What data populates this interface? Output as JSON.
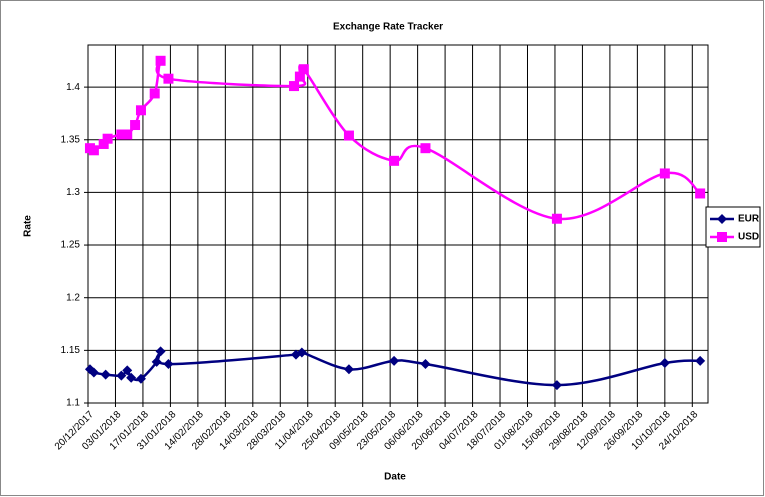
{
  "chart_data": {
    "type": "line",
    "title": "Exchange Rate Tracker",
    "x_label": "Date",
    "y_label": "Rate",
    "xlim": [
      "2017-12-20",
      "2018-11-01"
    ],
    "xticks": [
      {
        "value": "2017-12-20",
        "label": "20/12/2017"
      },
      {
        "value": "2018-01-03",
        "label": "03/01/2018"
      },
      {
        "value": "2018-01-17",
        "label": "17/01/2018"
      },
      {
        "value": "2018-01-31",
        "label": "31/01/2018"
      },
      {
        "value": "2018-02-14",
        "label": "14/02/2018"
      },
      {
        "value": "2018-02-28",
        "label": "28/02/2018"
      },
      {
        "value": "2018-03-14",
        "label": "14/03/2018"
      },
      {
        "value": "2018-03-28",
        "label": "28/03/2018"
      },
      {
        "value": "2018-04-11",
        "label": "11/04/2018"
      },
      {
        "value": "2018-04-25",
        "label": "25/04/2018"
      },
      {
        "value": "2018-05-09",
        "label": "09/05/2018"
      },
      {
        "value": "2018-05-23",
        "label": "23/05/2018"
      },
      {
        "value": "2018-06-06",
        "label": "06/06/2018"
      },
      {
        "value": "2018-06-20",
        "label": "20/06/2018"
      },
      {
        "value": "2018-07-04",
        "label": "04/07/2018"
      },
      {
        "value": "2018-07-18",
        "label": "18/07/2018"
      },
      {
        "value": "2018-08-01",
        "label": "01/08/2018"
      },
      {
        "value": "2018-08-15",
        "label": "15/08/2018"
      },
      {
        "value": "2018-08-29",
        "label": "29/08/2018"
      },
      {
        "value": "2018-09-12",
        "label": "12/09/2018"
      },
      {
        "value": "2018-09-26",
        "label": "26/09/2018"
      },
      {
        "value": "2018-10-10",
        "label": "10/10/2018"
      },
      {
        "value": "2018-10-24",
        "label": "24/10/2018"
      }
    ],
    "ylim": [
      1.1,
      1.44
    ],
    "yticks": [
      1.1,
      1.15,
      1.2,
      1.25,
      1.3,
      1.35,
      1.4
    ],
    "grid": true,
    "legend": "right",
    "series": [
      {
        "name": "EUR",
        "color": "#000080",
        "marker": "diamond",
        "x": [
          "2017-12-21",
          "2017-12-23",
          "2017-12-29",
          "2018-01-06",
          "2018-01-09",
          "2018-01-11",
          "2018-01-16",
          "2018-01-24",
          "2018-01-26",
          "2018-01-30",
          "2018-04-05",
          "2018-04-08",
          "2018-05-02",
          "2018-05-25",
          "2018-06-10",
          "2018-08-16",
          "2018-10-10",
          "2018-10-28"
        ],
        "values": [
          1.132,
          1.129,
          1.127,
          1.126,
          1.131,
          1.124,
          1.123,
          1.139,
          1.149,
          1.137,
          1.146,
          1.148,
          1.132,
          1.14,
          1.137,
          1.117,
          1.138,
          1.14
        ]
      },
      {
        "name": "USD",
        "color": "#ff00ff",
        "marker": "square",
        "x": [
          "2017-12-21",
          "2017-12-23",
          "2017-12-28",
          "2017-12-30",
          "2018-01-06",
          "2018-01-09",
          "2018-01-13",
          "2018-01-16",
          "2018-01-23",
          "2018-01-26",
          "2018-01-30",
          "2018-04-04",
          "2018-04-07",
          "2018-04-09",
          "2018-05-02",
          "2018-05-25",
          "2018-06-10",
          "2018-08-16",
          "2018-10-10",
          "2018-10-28"
        ],
        "values": [
          1.342,
          1.34,
          1.346,
          1.351,
          1.355,
          1.355,
          1.364,
          1.378,
          1.394,
          1.425,
          1.408,
          1.401,
          1.41,
          1.417,
          1.354,
          1.33,
          1.342,
          1.275,
          1.318,
          1.299
        ]
      }
    ]
  }
}
